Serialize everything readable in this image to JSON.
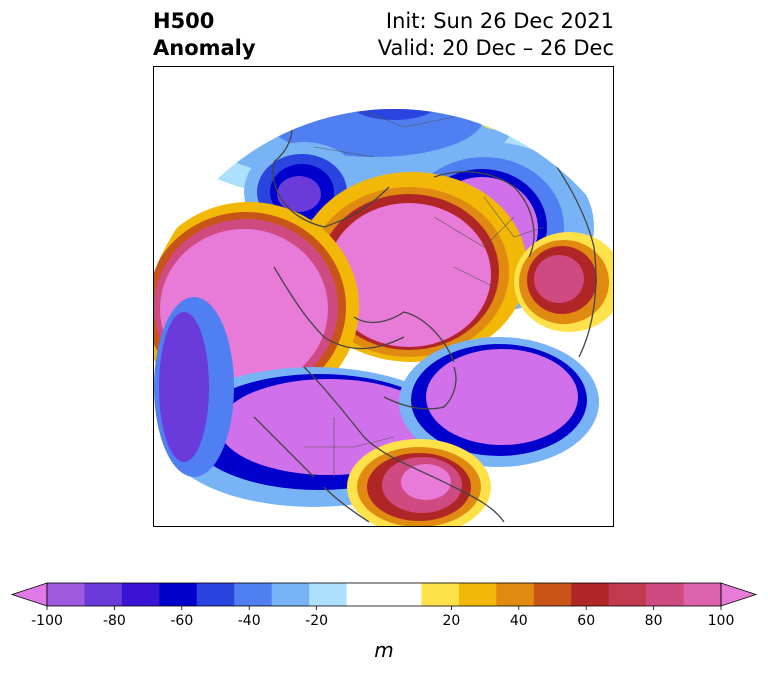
{
  "title": {
    "left_line1": "H500",
    "left_line2": "Anomaly",
    "right_line1": "Init: Sun 26 Dec 2021",
    "right_line2": "Valid: 20 Dec – 26 Dec"
  },
  "colorbar": {
    "unit": "m",
    "tick_labels": [
      "-100",
      "-80",
      "-60",
      "-40",
      "-20",
      "20",
      "40",
      "60",
      "80",
      "100"
    ],
    "tick_values": [
      -100,
      -80,
      -60,
      -40,
      -20,
      20,
      40,
      60,
      80,
      100
    ],
    "range": [
      -100,
      100
    ],
    "colors": [
      "#e078e6",
      "#a05ae0",
      "#6a3adb",
      "#3a14d4",
      "#0000cd",
      "#2a44df",
      "#4f7ff0",
      "#78b4f5",
      "#ace0fc",
      "#ffffff",
      "#ffffff",
      "#ffe24a",
      "#f2b807",
      "#e08a12",
      "#c85418",
      "#b02626",
      "#c23a50",
      "#d04a82",
      "#dc62ae",
      "#e87ad8"
    ]
  },
  "map": {
    "colors": {
      "neg_100": "#e078e6",
      "neg_90": "#a05ae0",
      "neg_70": "#3a14d4",
      "neg_60": "#0000cd",
      "neg_50": "#2a44df",
      "neg_40": "#4f7ff0",
      "neg_30": "#78b4f5",
      "neg_20": "#ace0fc",
      "pos_20": "#ffe24a",
      "pos_30": "#f2b807",
      "pos_40": "#e08a12",
      "pos_50": "#c85418",
      "pos_60": "#b02626",
      "pos_70": "#c23a50",
      "pos_80": "#d04a82",
      "pos_100": "#e87ad8",
      "coast": "#444444"
    }
  }
}
